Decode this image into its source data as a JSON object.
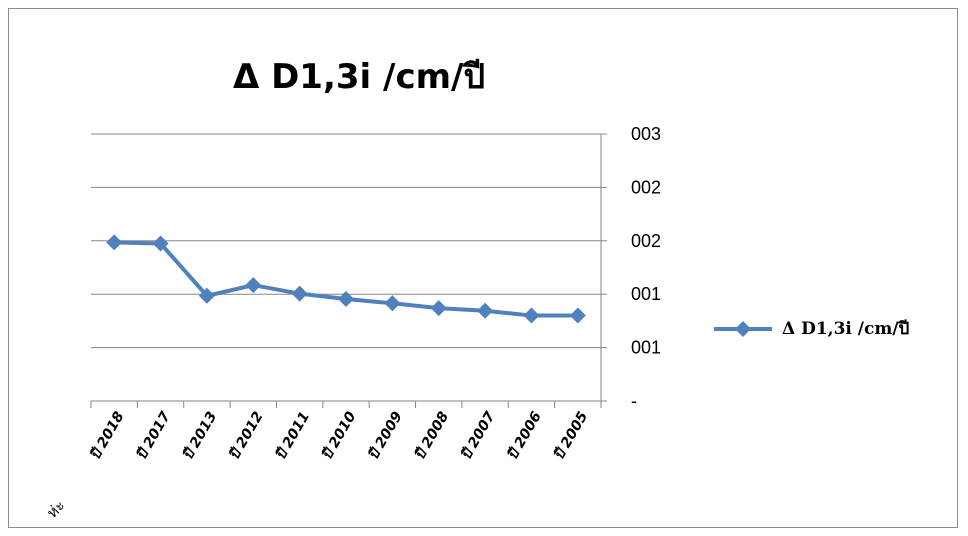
{
  "chart_data": {
    "type": "line",
    "title": "Δ D1,3i /cm/ปี",
    "categories": [
      "ปี 2018",
      "ปี 2017",
      "ปี 2013",
      "ปี 2012",
      "ปี 2011",
      "ปี 2010",
      "ปี 2009",
      "ปี 2008",
      "ปี 2007",
      "ปี 2006",
      "ปี 2005"
    ],
    "series": [
      {
        "name": "Δ D1,3i /cm/ปี",
        "color": "#4f81bd",
        "values": [
          2.97,
          2.95,
          1.97,
          2.17,
          2.01,
          1.91,
          1.83,
          1.74,
          1.69,
          1.6,
          1.6
        ]
      }
    ],
    "y_tick_labels": [
      "-",
      "001",
      "001",
      "002",
      "002",
      "003"
    ],
    "ylim": [
      0,
      5
    ],
    "y_axis_position": "right",
    "grid": true,
    "legend": "right",
    "corner_label": "ห่ะ"
  }
}
